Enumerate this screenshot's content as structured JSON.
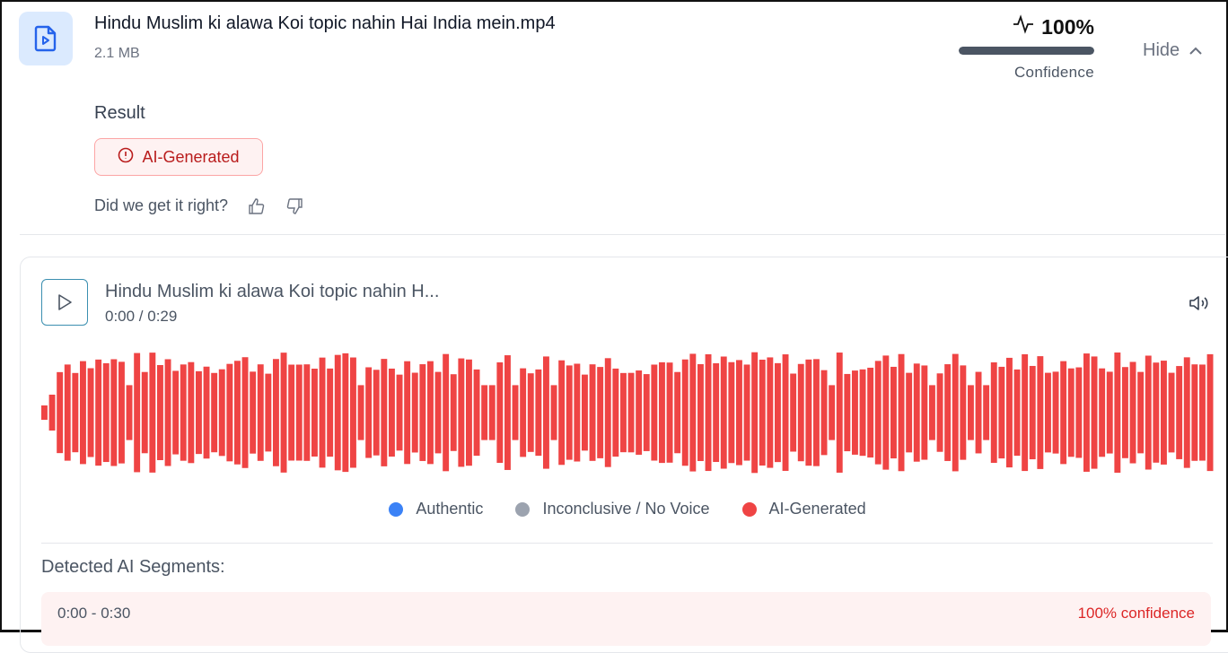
{
  "file": {
    "name": "Hindu Muslim ki alawa Koi topic nahin Hai India mein.mp4",
    "size": "2.1 MB",
    "icon": "file-video-icon"
  },
  "confidence": {
    "value_text": "100%",
    "value": 100,
    "label": "Confidence",
    "icon": "activity-icon"
  },
  "toggle": {
    "label": "Hide",
    "icon": "chevron-up-icon"
  },
  "result": {
    "label": "Result",
    "badge": "AI-Generated",
    "badge_icon": "alert-circle-icon"
  },
  "feedback": {
    "question": "Did we get it right?",
    "up_icon": "thumbs-up-icon",
    "down_icon": "thumbs-down-icon"
  },
  "player": {
    "title": "Hindu Muslim ki alawa Koi topic nahin H...",
    "time": "0:00 / 0:29",
    "play_icon": "play-icon",
    "volume_icon": "volume-icon"
  },
  "legend": [
    {
      "label": "Authentic",
      "color": "#3b82f6"
    },
    {
      "label": "Inconclusive / No Voice",
      "color": "#9ca3af"
    },
    {
      "label": "AI-Generated",
      "color": "#ef4444"
    }
  ],
  "waveform_color": "#ef4444",
  "segments": {
    "title": "Detected AI Segments:",
    "items": [
      {
        "range": "0:00 - 0:30",
        "confidence": "100% confidence"
      }
    ]
  }
}
